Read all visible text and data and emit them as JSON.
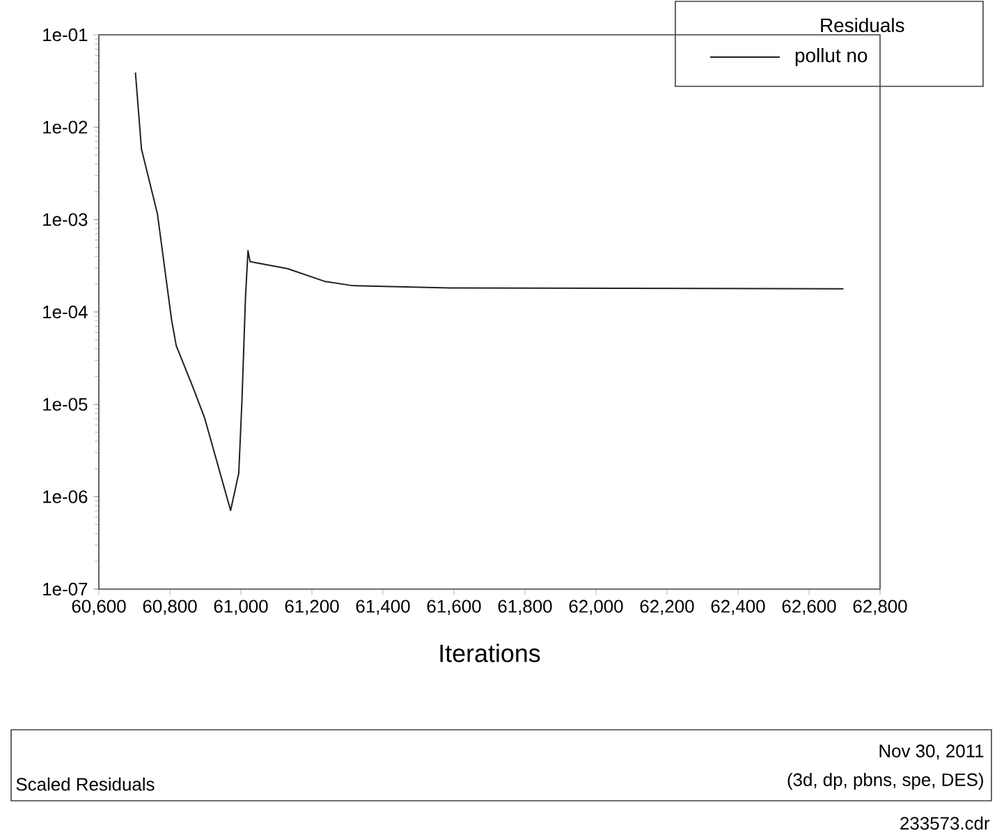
{
  "chart_data": {
    "type": "line",
    "legend_title": "Residuals",
    "xlabel": "Iterations",
    "x": [
      60703,
      60720,
      60765,
      60805,
      60818,
      60863,
      60898,
      60971,
      60994,
      61003,
      61013,
      61020,
      61026,
      61131,
      61235,
      61313,
      61587,
      62697
    ],
    "series": [
      {
        "name": "pollut no",
        "color": "#202020",
        "values": [
          0.039,
          0.0058,
          0.00115,
          8.1e-05,
          4.3e-05,
          1.6e-05,
          7.1e-06,
          7.1e-07,
          1.8e-06,
          1.1e-05,
          0.000145,
          0.00046,
          0.00035,
          0.000295,
          0.000215,
          0.000193,
          0.000182,
          0.000178
        ]
      }
    ],
    "log": "y",
    "legend": "top right",
    "marker": "none",
    "line_style": "solid",
    "xlim": [
      60600,
      62800
    ],
    "xticks": [
      {
        "value": 60600,
        "label": "60,600"
      },
      {
        "value": 60800,
        "label": "60,800"
      },
      {
        "value": 61000,
        "label": "61,000"
      },
      {
        "value": 61200,
        "label": "61,200"
      },
      {
        "value": 61400,
        "label": "61,400"
      },
      {
        "value": 61600,
        "label": "61,600"
      },
      {
        "value": 61800,
        "label": "61,800"
      },
      {
        "value": 62000,
        "label": "62,000"
      },
      {
        "value": 62200,
        "label": "62,200"
      },
      {
        "value": 62400,
        "label": "62,400"
      },
      {
        "value": 62600,
        "label": "62,600"
      },
      {
        "value": 62800,
        "label": "62,800"
      }
    ],
    "ylim": [
      1e-07,
      0.1
    ],
    "yticks": [
      {
        "value": 1e-07,
        "label": "1e-07"
      },
      {
        "value": 1e-06,
        "label": "1e-06"
      },
      {
        "value": 1e-05,
        "label": "1e-05"
      },
      {
        "value": 0.0001,
        "label": "1e-04"
      },
      {
        "value": 0.001,
        "label": "1e-03"
      },
      {
        "value": 0.01,
        "label": "1e-02"
      },
      {
        "value": 0.1,
        "label": "1e-01"
      }
    ],
    "annotations": [
      "Scaled Residuals",
      "Nov 30, 2011",
      "(3d, dp, pbns, spe, DES)",
      "233573.cdr"
    ]
  }
}
